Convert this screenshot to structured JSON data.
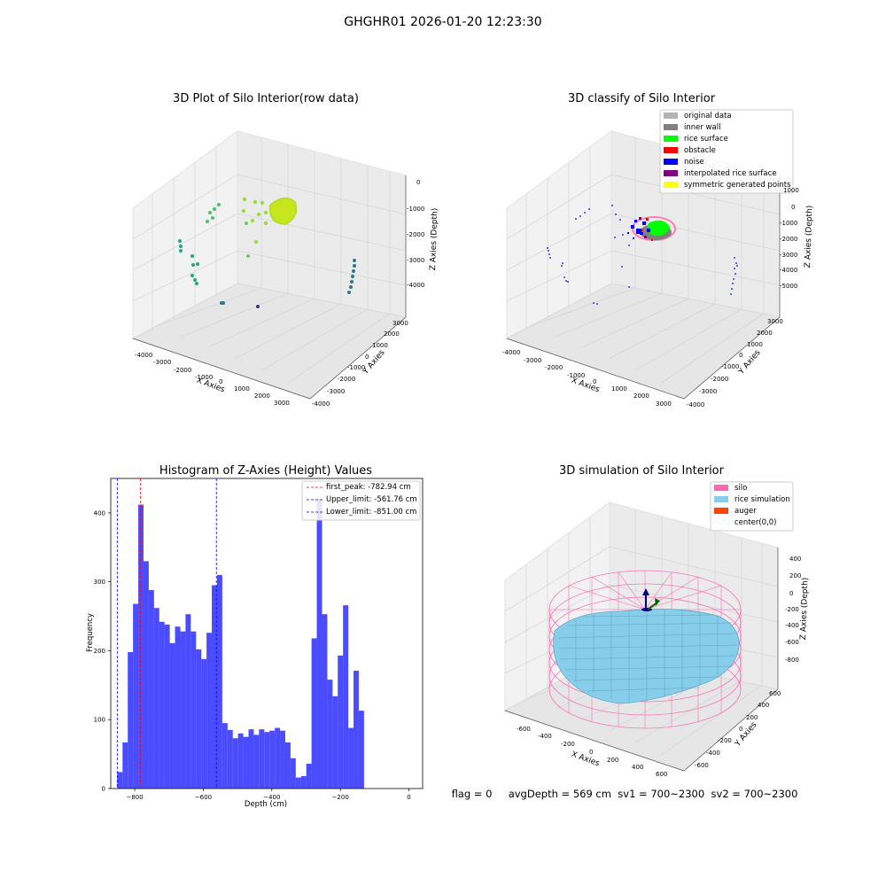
{
  "suptitle": "GHGHR01 2026-01-20 12:23:30",
  "panels": {
    "raw": {
      "title": "3D Plot of Silo Interior(row data)",
      "xlabel": "X Axies",
      "ylabel": "Y Axies",
      "zlabel": "Z Axies (Depth)",
      "xticks": [
        "-4000",
        "-3000",
        "-2000",
        "-1000",
        "0",
        "1000",
        "2000",
        "3000"
      ],
      "yticks": [
        "3000",
        "2000",
        "1000",
        "0",
        "-1000",
        "-2000",
        "-3000",
        "-4000"
      ],
      "zticks": [
        "0",
        "-1000",
        "-2000",
        "-3000",
        "-4000"
      ]
    },
    "classify": {
      "title": "3D classify of Silo Interior",
      "xlabel": "X Axies",
      "ylabel": "Y Axies",
      "zlabel": "Z Axies (Depth)",
      "xticks": [
        "-4000",
        "-3000",
        "-2000",
        "-1000",
        "0",
        "1000",
        "2000",
        "3000"
      ],
      "yticks": [
        "3000",
        "2000",
        "1000",
        "0",
        "-1000",
        "-2000",
        "-3000",
        "-4000"
      ],
      "zticks": [
        "1000",
        "0",
        "-1000",
        "-2000",
        "-3000",
        "-4000",
        "-5000"
      ],
      "legend": [
        {
          "label": "original data",
          "color": "#b3b3b3"
        },
        {
          "label": "inner wall",
          "color": "#808080"
        },
        {
          "label": "rice surface",
          "color": "#00ff00"
        },
        {
          "label": "obstacle",
          "color": "#ff0000"
        },
        {
          "label": "noise",
          "color": "#0000ff"
        },
        {
          "label": "interpolated rice surface",
          "color": "#800080"
        },
        {
          "label": "symmetric generated points",
          "color": "#ffff00"
        }
      ]
    },
    "simulation": {
      "title": "3D simulation of Silo Interior",
      "xlabel": "X Axies",
      "ylabel": "Y Axies",
      "zlabel": "Z Axies (Depth)",
      "xticks": [
        "-600",
        "-400",
        "-200",
        "0",
        "200",
        "400",
        "600"
      ],
      "yticks": [
        "600",
        "400",
        "200",
        "0",
        "-200",
        "-400",
        "-600"
      ],
      "zticks": [
        "400",
        "200",
        "0",
        "-200",
        "-400",
        "-600",
        "-800"
      ],
      "legend": [
        {
          "label": "silo",
          "color": "#ff69b4"
        },
        {
          "label": "rice simulation",
          "color": "#87ceeb"
        },
        {
          "label": "auger",
          "color": "#ff4500"
        },
        {
          "label": "center(0,0)",
          "color": "#ffffff"
        }
      ]
    }
  },
  "chart_data": {
    "type": "bar",
    "title": "Histogram of Z-Axies (Height) Values",
    "xlabel": "Depth (cm)",
    "ylabel": "Frequency",
    "xlim": [
      -870,
      40
    ],
    "ylim": [
      0,
      450
    ],
    "xticks": [
      -800,
      -600,
      -400,
      -200,
      0
    ],
    "yticks": [
      0,
      100,
      200,
      300,
      400
    ],
    "bar_color": "#0000ff",
    "bin_edges_start": -851.0,
    "bin_width": 15.32,
    "values": [
      24,
      67,
      198,
      268,
      412,
      330,
      288,
      262,
      242,
      238,
      211,
      235,
      228,
      253,
      228,
      202,
      188,
      226,
      295,
      310,
      95,
      85,
      73,
      80,
      75,
      86,
      78,
      86,
      82,
      84,
      88,
      84,
      67,
      44,
      16,
      18,
      36,
      218,
      420,
      253,
      158,
      134,
      193,
      266,
      88,
      171,
      113
    ],
    "lines": [
      {
        "label": "first_peak: -782.94 cm",
        "x": -782.94,
        "color": "#ff0000"
      },
      {
        "label": "Upper_limit: -561.76 cm",
        "x": -561.76,
        "color": "#0000ff"
      },
      {
        "label": "Lower_limit: -851.00 cm",
        "x": -851.0,
        "color": "#0000ff"
      }
    ],
    "legend_position": "top-right"
  },
  "info": {
    "flag": "flag = 0",
    "avg": "avgDepth = 569 cm",
    "sv1": "sv1 = 700~2300",
    "sv2": "sv2 = 700~2300"
  }
}
